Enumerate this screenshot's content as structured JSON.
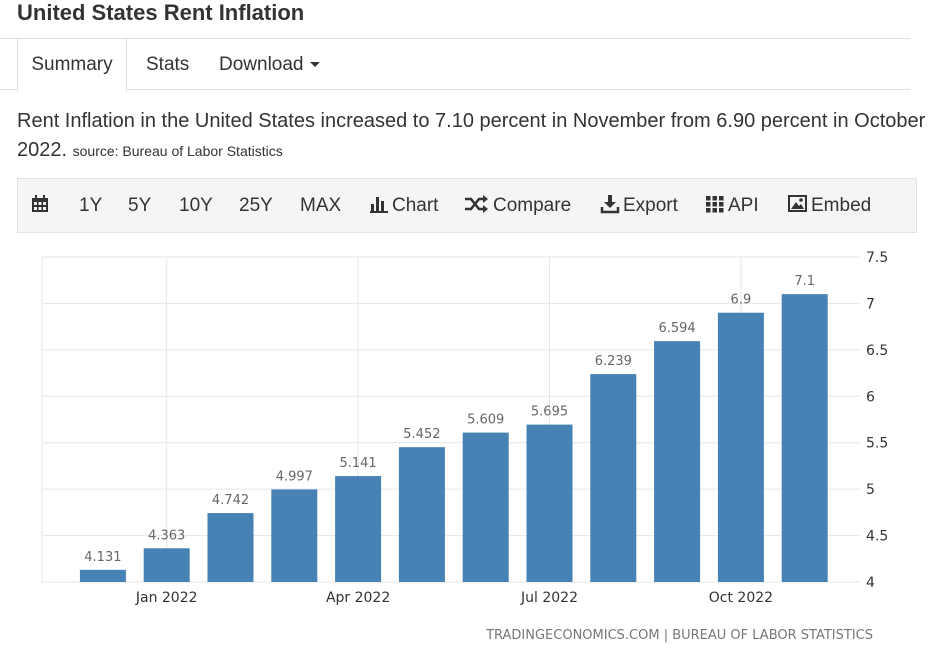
{
  "header": {
    "title": "United States Rent Inflation"
  },
  "tabs": [
    "Summary",
    "Stats",
    "Download"
  ],
  "description": {
    "text": "Rent Inflation in the United States increased to 7.10 percent in November from 6.90 percent in October 2022.",
    "source": "source: Bureau of Labor Statistics"
  },
  "toolbar": [
    "1Y",
    "5Y",
    "10Y",
    "25Y",
    "MAX",
    "Chart",
    "Compare",
    "Export",
    "API",
    "Embed"
  ],
  "chart_data": {
    "type": "bar",
    "categories": [
      null,
      "Jan 2022",
      null,
      null,
      "Apr 2022",
      null,
      null,
      "Jul 2022",
      null,
      null,
      "Oct 2022",
      null
    ],
    "values": [
      4.131,
      4.363,
      4.742,
      4.997,
      5.141,
      5.452,
      5.609,
      5.695,
      6.239,
      6.594,
      6.9,
      7.1
    ],
    "color": "#4682b4",
    "ylim": [
      4,
      7.5
    ],
    "yticks": [
      4,
      4.5,
      5,
      5.5,
      6,
      6.5,
      7,
      7.5
    ],
    "grid": true,
    "credit": "TRADINGECONOMICS.COM | BUREAU OF LABOR STATISTICS"
  }
}
